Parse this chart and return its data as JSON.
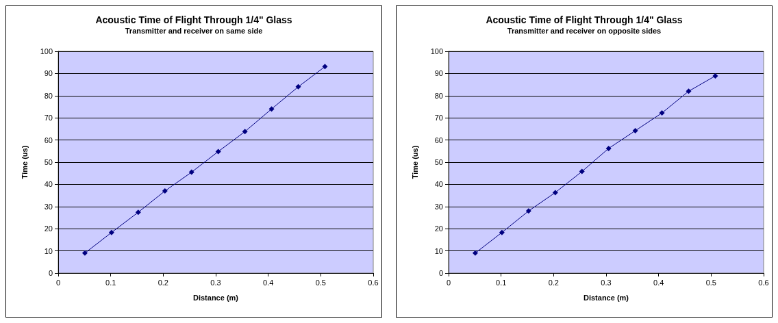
{
  "chart_data": [
    {
      "type": "line",
      "title": "Acoustic Time of Flight Through 1/4\" Glass",
      "subtitle": "Transmitter and receiver on same side",
      "xlabel": "Distance (m)",
      "ylabel": "Time (us)",
      "x": [
        0.0508,
        0.1016,
        0.1524,
        0.2032,
        0.254,
        0.3048,
        0.3556,
        0.4064,
        0.4572,
        0.508
      ],
      "series": [
        {
          "color": "#000080",
          "values": [
            9,
            18.3,
            27.4,
            37,
            45.5,
            54.8,
            63.8,
            74,
            84,
            93.1
          ]
        }
      ],
      "xlim": [
        0,
        0.6
      ],
      "xticks": [
        0,
        0.1,
        0.2,
        0.3,
        0.4,
        0.5,
        0.6
      ],
      "ylim": [
        0,
        100
      ],
      "yticks": [
        0,
        10,
        20,
        30,
        40,
        50,
        60,
        70,
        80,
        90,
        100
      ],
      "grid": "y",
      "marker": "diamond",
      "line_style": "solid"
    },
    {
      "type": "line",
      "title": "Acoustic Time of Flight Through 1/4\" Glass",
      "subtitle": "Transmitter and receiver on opposite sides",
      "xlabel": "Distance (m)",
      "ylabel": "Time (us)",
      "x": [
        0.0508,
        0.1016,
        0.1524,
        0.2032,
        0.254,
        0.3048,
        0.3556,
        0.4064,
        0.4572,
        0.508
      ],
      "series": [
        {
          "color": "#000080",
          "values": [
            9,
            18.3,
            28,
            36.3,
            45.8,
            56.2,
            64.2,
            72.2,
            82,
            88.9
          ]
        }
      ],
      "xlim": [
        0,
        0.6
      ],
      "xticks": [
        0,
        0.1,
        0.2,
        0.3,
        0.4,
        0.5,
        0.6
      ],
      "ylim": [
        0,
        100
      ],
      "yticks": [
        0,
        10,
        20,
        30,
        40,
        50,
        60,
        70,
        80,
        90,
        100
      ],
      "grid": "y",
      "marker": "diamond",
      "line_style": "solid"
    }
  ]
}
